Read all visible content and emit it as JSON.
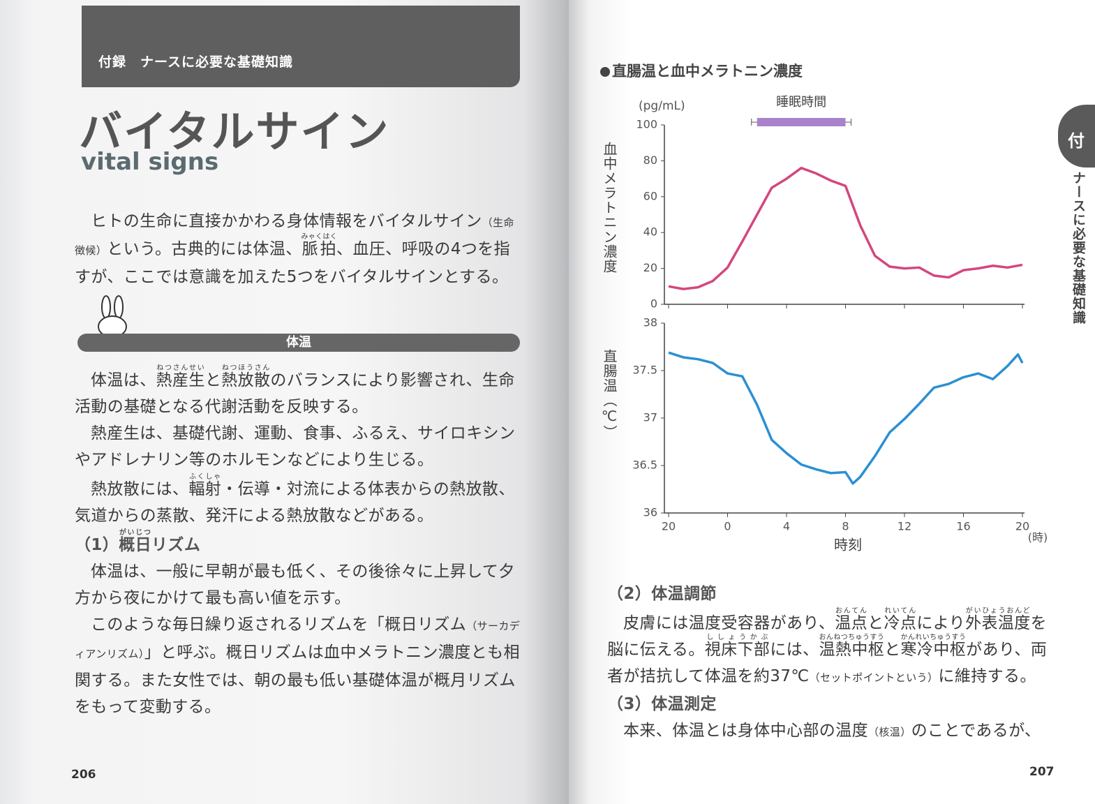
{
  "left_page": {
    "header": "付録　ナースに必要な基礎知識",
    "title": "バイタルサイン",
    "subtitle": "vital signs",
    "intro": [
      "ヒトの生命に直接かかわる身体情報をバイタルサイン",
      {
        "note": "（生命徴候）"
      },
      "という。古典的には体温、",
      {
        "text": "脈拍",
        "ruby": "みゃくはく"
      },
      "、血圧、呼吸の4つを指すが、ここでは意識を加えた5つをバイタルサインとする。"
    ],
    "section": "体温",
    "body": [
      {
        "kind": "p",
        "segments": [
          "体温は、",
          {
            "text": "熱産生",
            "ruby": "ねつさんせい"
          },
          "と",
          {
            "text": "熱放散",
            "ruby": "ねつほうさん"
          },
          "のバランスにより影響され、生命活動の基礎となる代謝活動を反映する。"
        ]
      },
      {
        "kind": "p",
        "segments": [
          "熱産生は、基礎代謝、運動、食事、ふるえ、サイロキシンやアドレナリン等のホルモンなどにより生じる。"
        ]
      },
      {
        "kind": "p",
        "segments": [
          "熱放散には、",
          {
            "text": "輻射",
            "ruby": "ふくしゃ"
          },
          "・伝導・対流による体表からの熱放散、気道からの蒸散、発汗による熱放散などがある。"
        ]
      },
      {
        "kind": "h",
        "segments": [
          "（1）",
          {
            "text": "概日",
            "ruby": "がいじつ"
          },
          "リズム"
        ]
      },
      {
        "kind": "p",
        "segments": [
          "体温は、一般に早朝が最も低く、その後徐々に上昇して夕方から夜にかけて最も高い値を示す。"
        ]
      },
      {
        "kind": "p",
        "segments": [
          "このような毎日繰り返されるリズムを「概日リズム",
          {
            "note": "（サーカディアンリズム）"
          },
          "」と呼ぶ。概日リズムは血中メラトニン濃度とも相関する。また女性では、朝の最も低い基礎体温が概月リズムをもって変動する。"
        ]
      }
    ],
    "page_number": "206"
  },
  "right_page": {
    "body": [
      {
        "kind": "h",
        "segments": [
          "（2）体温調節"
        ]
      },
      {
        "kind": "p",
        "segments": [
          "皮膚には温度受容器があり、",
          {
            "text": "温点",
            "ruby": "おんてん"
          },
          "と",
          {
            "text": "冷点",
            "ruby": "れいてん"
          },
          "により",
          {
            "text": "外表温度",
            "ruby": "がいひょうおんど"
          },
          "を脳に伝える。",
          {
            "text": "視床下部",
            "ruby": "ししょうかぶ"
          },
          "には、",
          {
            "text": "温熱中枢",
            "ruby": "おんねつちゅうすう"
          },
          "と",
          {
            "text": "寒冷中枢",
            "ruby": "かんれいちゅうすう"
          },
          "があり、両者が拮抗して体温を約37℃",
          {
            "note": "（セットポイントという）"
          },
          "に維持する。"
        ]
      },
      {
        "kind": "h",
        "segments": [
          "（3）体温測定"
        ]
      },
      {
        "kind": "p",
        "segments": [
          "本来、体温とは身体中心部の温度",
          {
            "note": "（核温）"
          },
          "のことであるが、"
        ]
      }
    ],
    "page_number": "207",
    "tab_mark": "付",
    "tab_text": "ナースに必要な基礎知識"
  },
  "chart_data": [
    {
      "type": "line",
      "title": "直腸温と血中メラトニン濃度",
      "y_label": "血中メラトニン濃度",
      "y_unit": "(pg/mL)",
      "x": [
        20,
        21,
        22,
        23,
        24,
        25,
        26,
        27,
        28,
        29,
        30,
        31,
        32,
        33,
        34,
        35,
        36,
        37,
        38,
        39,
        40,
        41,
        42,
        43,
        44
      ],
      "values": [
        10,
        8.5,
        9.5,
        13,
        20.5,
        35,
        50,
        65,
        70,
        76,
        73,
        69,
        66,
        44,
        27,
        21,
        20,
        20.5,
        16,
        15,
        19,
        20,
        21.5,
        20.5,
        22
      ],
      "color": "#d4467e",
      "xlim": [
        20,
        44
      ],
      "ylim": [
        0,
        100
      ],
      "yticks": [
        0,
        20,
        40,
        60,
        80,
        100
      ],
      "sleep": {
        "label": "睡眠時間",
        "start": 26,
        "end": 32,
        "color": "#a982cc"
      }
    },
    {
      "type": "line",
      "y_label": "直腸温（℃）",
      "x_label": "時刻",
      "x_unit": "(時)",
      "x": [
        20,
        21,
        22,
        23,
        24,
        25,
        26,
        27,
        28,
        29,
        30,
        31,
        32,
        32.5,
        33,
        34,
        35,
        36,
        37,
        38,
        39,
        40,
        41,
        42,
        43,
        43.7,
        44
      ],
      "values": [
        37.69,
        37.64,
        37.62,
        37.58,
        37.47,
        37.44,
        37.14,
        36.77,
        36.63,
        36.51,
        36.46,
        36.42,
        36.43,
        36.31,
        36.38,
        36.6,
        36.85,
        36.99,
        37.15,
        37.32,
        37.36,
        37.43,
        37.47,
        37.41,
        37.55,
        37.67,
        37.58
      ],
      "color": "#2b90d2",
      "xlim": [
        20,
        44
      ],
      "ylim": [
        36,
        38
      ],
      "yticks": [
        36,
        36.5,
        37,
        37.5,
        38
      ],
      "xticks": [
        20,
        {
          "value": 24,
          "label": "0"
        },
        {
          "value": 28,
          "label": "4"
        },
        {
          "value": 32,
          "label": "8"
        },
        {
          "value": 36,
          "label": "12"
        },
        {
          "value": 40,
          "label": "16"
        },
        {
          "value": 44,
          "label": "20"
        }
      ]
    }
  ]
}
